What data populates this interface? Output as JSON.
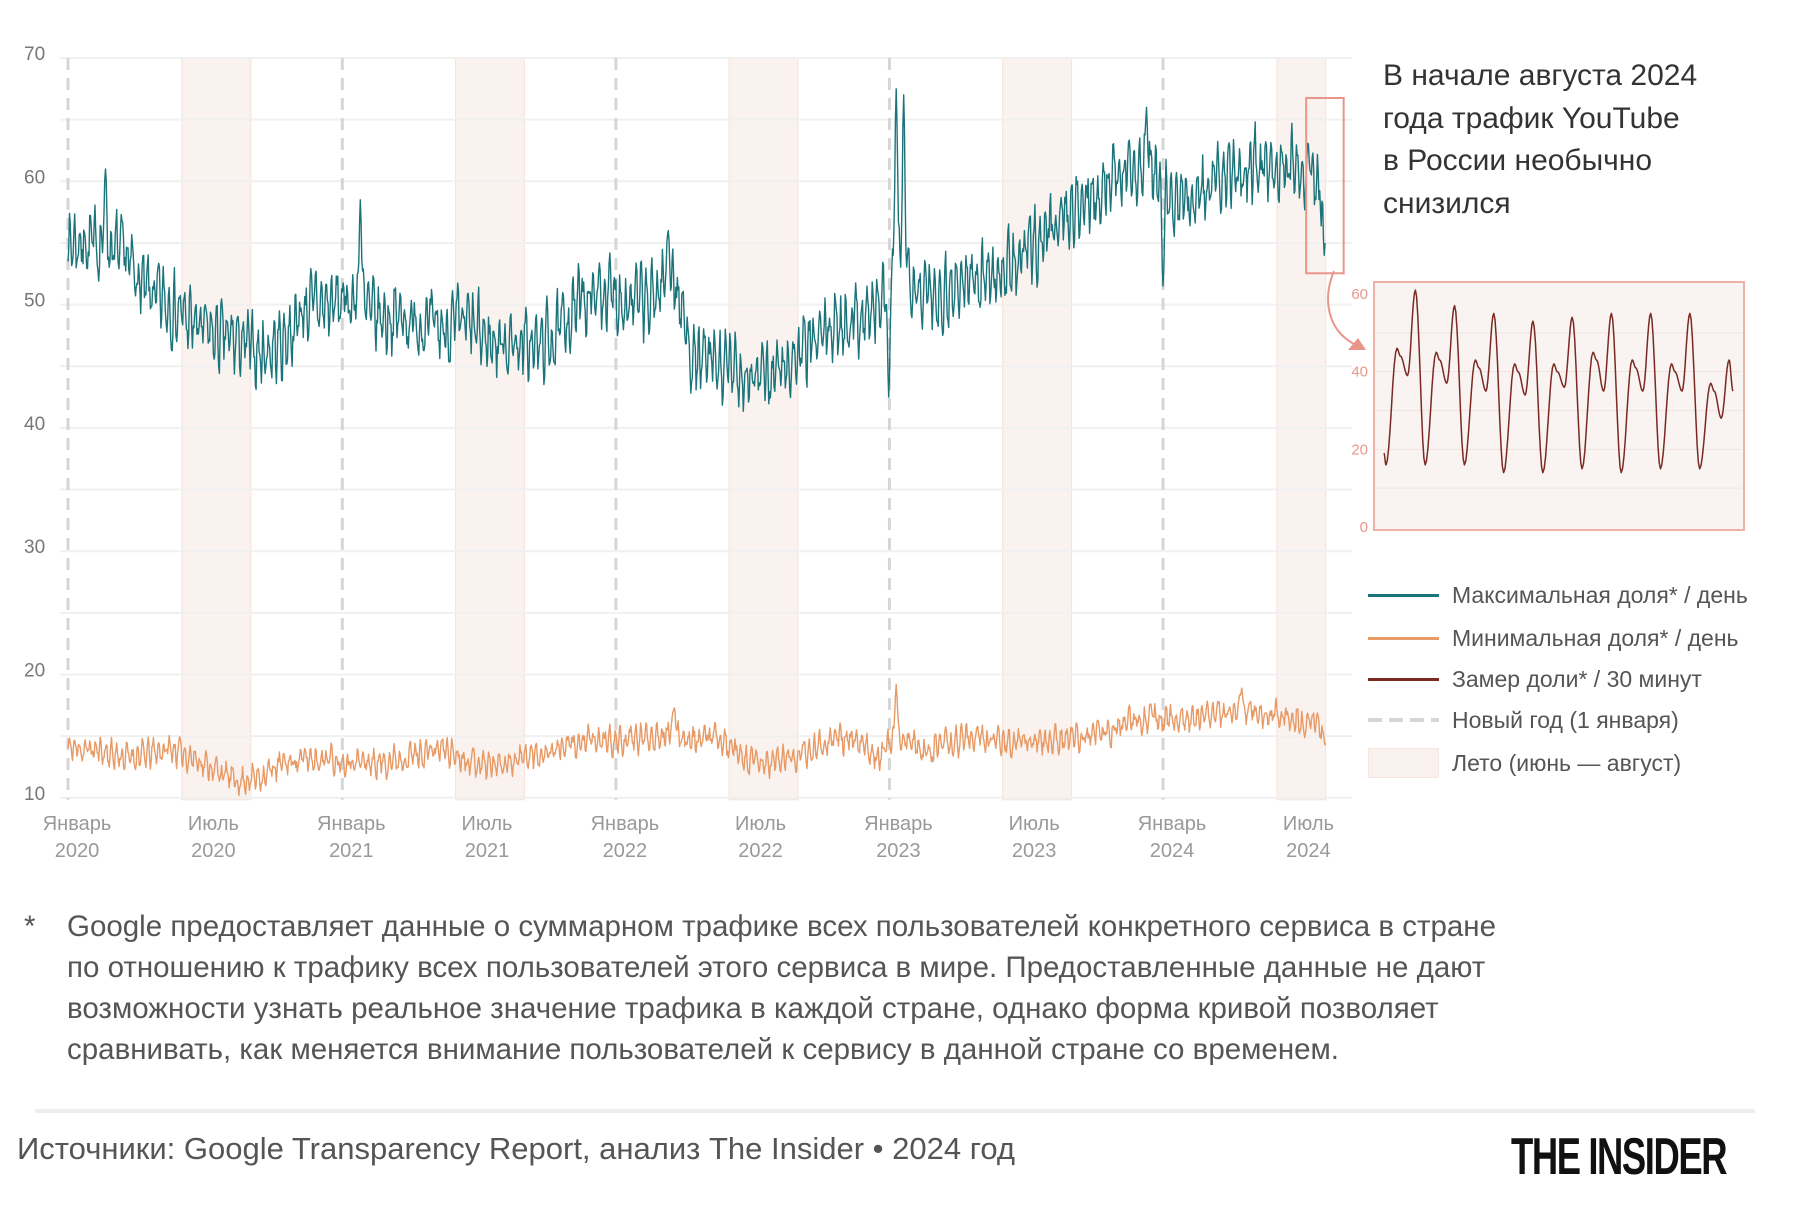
{
  "title_lines": [
    "В начале августа 2024",
    "года трафик YouTube",
    "в России необычно",
    "снизился"
  ],
  "legend": [
    {
      "label": "Максимальная доля* / день",
      "color": "#1c747b",
      "style": "solid"
    },
    {
      "label": "Минимальная доля* / день",
      "color": "#e89a66",
      "style": "solid"
    },
    {
      "label": "Замер доли* / 30 минут",
      "color": "#7a2a22",
      "style": "solid"
    },
    {
      "label": "Новый год (1 января)",
      "color": "#d6d6d6",
      "style": "dashed"
    },
    {
      "label": "Лето (июнь — август)",
      "color": "#f9f1ee",
      "style": "band"
    }
  ],
  "footnote": {
    "marker": "*",
    "lines": [
      "Google предоставляет данные о суммарном трафике всех пользователей конкретного сервиса в стране",
      "по отношению к трафику всех пользователей этого сервиса в мире. Предоставленные данные не дают",
      "возможности узнать реальное значение трафика в каждой стране, однако форма кривой позволяет",
      "сравнивать, как меняется внимание пользователей к сервису в данной стране со временем."
    ]
  },
  "source": "Источники: Google Transparency Report, анализ The Insider • 2024 год",
  "logo": "THE INSIDER",
  "chart_data": [
    {
      "type": "line",
      "x_range": [
        "2020-01-01",
        "2024-08-05"
      ],
      "ylim": [
        10,
        70
      ],
      "y_ticks": [
        10,
        20,
        30,
        40,
        50,
        60,
        70
      ],
      "grid_step": 5,
      "grid": true,
      "x_ticks": [
        {
          "date": "2020-01-01",
          "month": "Январь",
          "year": "2020"
        },
        {
          "date": "2020-07-01",
          "month": "Июль",
          "year": "2020"
        },
        {
          "date": "2021-01-01",
          "month": "Январь",
          "year": "2021"
        },
        {
          "date": "2021-07-01",
          "month": "Июль",
          "year": "2021"
        },
        {
          "date": "2022-01-01",
          "month": "Январь",
          "year": "2022"
        },
        {
          "date": "2022-07-01",
          "month": "Июль",
          "year": "2022"
        },
        {
          "date": "2023-01-01",
          "month": "Январь",
          "year": "2023"
        },
        {
          "date": "2023-07-01",
          "month": "Июль",
          "year": "2023"
        },
        {
          "date": "2024-01-01",
          "month": "Январь",
          "year": "2024"
        },
        {
          "date": "2024-07-01",
          "month": "Июль",
          "year": "2024"
        }
      ],
      "new_year_lines": [
        "2020-01-01",
        "2021-01-01",
        "2022-01-01",
        "2023-01-01",
        "2024-01-01"
      ],
      "summer_bands": [
        [
          "2020-06-01",
          "2020-09-01"
        ],
        [
          "2021-06-01",
          "2021-09-01"
        ],
        [
          "2022-06-01",
          "2022-09-01"
        ],
        [
          "2023-06-01",
          "2023-09-01"
        ],
        [
          "2024-06-01",
          "2024-08-05"
        ]
      ],
      "highlight_range": {
        "x": [
          "2024-07-10",
          "2024-08-05"
        ],
        "y": [
          54,
          67
        ]
      },
      "series": [
        {
          "name": "Максимальная доля* / день",
          "color": "#1c747b",
          "x_start_month": "2020-01",
          "monthly_values": [
            55,
            55,
            54,
            51,
            50,
            48.5,
            47.5,
            47,
            46,
            47,
            50,
            50,
            50.5,
            49,
            49,
            48.5,
            48,
            48.5,
            47,
            47,
            46.5,
            47.5,
            50.5,
            51,
            50.5,
            50,
            53,
            45.5,
            45,
            44.5,
            44,
            45,
            46.5,
            48,
            49,
            49.5,
            54,
            51,
            51,
            52,
            52.5,
            53,
            55,
            57,
            58,
            60,
            61,
            61,
            58,
            59,
            60,
            61,
            61.5,
            61.5,
            61.5,
            56
          ],
          "spikes": [
            {
              "date": "2020-02-20",
              "value": 61
            },
            {
              "date": "2021-01-25",
              "value": 58.5
            },
            {
              "date": "2022-03-12",
              "value": 56
            },
            {
              "date": "2022-12-31",
              "value": 42.5
            },
            {
              "date": "2023-01-10",
              "value": 67.5
            },
            {
              "date": "2023-01-20",
              "value": 67
            },
            {
              "date": "2023-12-10",
              "value": 66
            },
            {
              "date": "2024-01-01",
              "value": 51.5
            },
            {
              "date": "2024-08-03",
              "value": 54
            }
          ]
        },
        {
          "name": "Минимальная доля* / день",
          "color": "#e89a66",
          "x_start_month": "2020-01",
          "monthly_values": [
            14,
            13.8,
            13.3,
            13.5,
            14,
            13.3,
            12.3,
            11.3,
            11.8,
            12.8,
            13.2,
            13.2,
            13,
            12.8,
            13.2,
            13.6,
            14,
            13.2,
            12.7,
            13,
            13.5,
            14,
            14.5,
            14.6,
            14.6,
            15,
            15.5,
            14.6,
            15,
            13.2,
            12.7,
            13.2,
            13.6,
            15,
            14.5,
            13.5,
            15,
            13.8,
            14.2,
            15,
            14.6,
            14.6,
            14.6,
            14.7,
            15,
            15.3,
            16,
            16.5,
            16.2,
            16.6,
            16.8,
            17.2,
            16.8,
            16.3,
            16.2,
            15
          ],
          "spikes": [
            {
              "date": "2022-03-20",
              "value": 17.3
            },
            {
              "date": "2023-01-10",
              "value": 19.2
            },
            {
              "date": "2024-04-15",
              "value": 18.9
            },
            {
              "date": "2024-08-04",
              "value": 14.3
            }
          ]
        }
      ]
    },
    {
      "type": "line",
      "ylim": [
        0,
        60
      ],
      "y_ticks": [
        0,
        20,
        40,
        60
      ],
      "grid": true,
      "series": [
        {
          "name": "Замер доли* / 30 минут",
          "color": "#7a2a22",
          "start_value": 19,
          "daily_cycles": [
            {
              "trough": 16,
              "plateau": 46,
              "dip": 39,
              "peak": 61
            },
            {
              "trough": 16,
              "plateau": 45,
              "dip": 37,
              "peak": 57
            },
            {
              "trough": 16,
              "plateau": 43,
              "dip": 35,
              "peak": 55
            },
            {
              "trough": 14,
              "plateau": 42,
              "dip": 34,
              "peak": 53
            },
            {
              "trough": 14,
              "plateau": 42,
              "dip": 36,
              "peak": 54
            },
            {
              "trough": 15,
              "plateau": 45,
              "dip": 35,
              "peak": 55
            },
            {
              "trough": 14,
              "plateau": 43,
              "dip": 35,
              "peak": 55
            },
            {
              "trough": 15,
              "plateau": 42,
              "dip": 35,
              "peak": 55
            },
            {
              "trough": 15,
              "plateau": 37,
              "dip": 28,
              "peak": 43
            }
          ],
          "end_value": 35
        }
      ]
    }
  ]
}
